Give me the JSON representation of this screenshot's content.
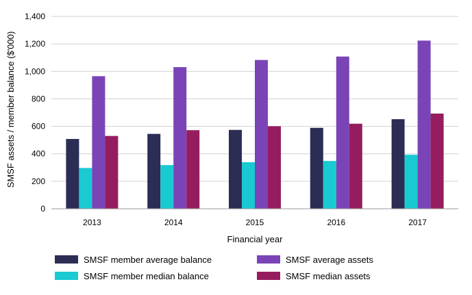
{
  "chart_data": {
    "type": "bar",
    "title": "",
    "xlabel": "Financial year",
    "ylabel": "SMSF assets / member balance ($'000)",
    "categories": [
      "2013",
      "2014",
      "2015",
      "2016",
      "2017"
    ],
    "ylim": [
      0,
      1400
    ],
    "yticks": [
      "0",
      "200",
      "400",
      "600",
      "800",
      "1,000",
      "1,200",
      "1,400"
    ],
    "grid": "horizontal",
    "legend_position": "bottom",
    "series": [
      {
        "name": "SMSF member average balance",
        "color": "#2b2d55",
        "values": [
          508,
          545,
          574,
          589,
          652
        ]
      },
      {
        "name": "SMSF member median balance",
        "color": "#19cad2",
        "values": [
          297,
          318,
          339,
          348,
          393
        ]
      },
      {
        "name": "SMSF average assets",
        "color": "#7a44b7",
        "values": [
          965,
          1031,
          1083,
          1108,
          1224
        ]
      },
      {
        "name": "SMSF median assets",
        "color": "#951d5f",
        "values": [
          530,
          572,
          601,
          619,
          693
        ]
      }
    ]
  }
}
